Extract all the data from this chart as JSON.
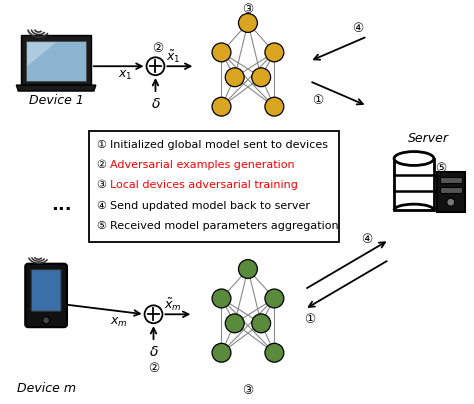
{
  "legend_items": [
    {
      "num": "①",
      "text": " Initialized global model sent to devices",
      "color": "black"
    },
    {
      "num": "②",
      "text": " Adversarial examples generation",
      "color": "red"
    },
    {
      "num": "③",
      "text": " Local devices adversarial training",
      "color": "red"
    },
    {
      "num": "④",
      "text": " Send updated model back to server",
      "color": "black"
    },
    {
      "num": "⑤",
      "text": " Received model parameters aggregation",
      "color": "black"
    }
  ],
  "nn_top_color": "#DAA520",
  "nn_bottom_color": "#5A8A3C",
  "background": "white",
  "device1_label": "Device 1",
  "devicem_label": "Device m",
  "server_label": "Server",
  "dots_label": "..."
}
